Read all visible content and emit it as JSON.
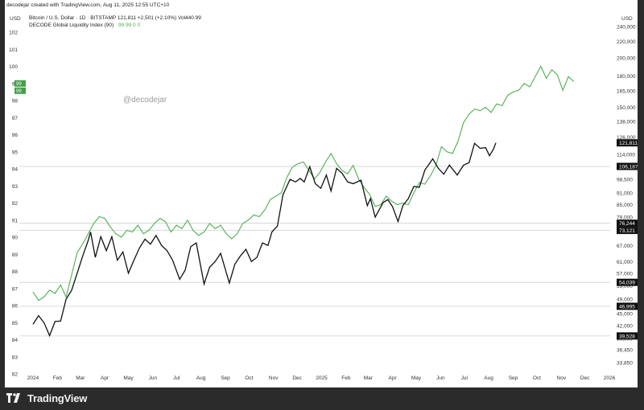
{
  "header": {
    "credit": "decodejar created with TradingView.com, Aug 11, 2025 12:55 UTC+10",
    "line1": "Bitcoin / U.S. Dollar · 1D · BITSTAMP  121,811  +2,501 (+2.10%)  Vol440.99",
    "line2_label": "DECODE Global Liquidity Index (90)",
    "line2_values": "99  99  0  0",
    "watermark": "@decodejar",
    "left_unit": "USD",
    "right_unit": "USD"
  },
  "footer": {
    "brand": "TradingView"
  },
  "colors": {
    "btc": "#111111",
    "liquidity": "#4caf50",
    "liquidity_badge": "#43a047",
    "price_badge": "#111111",
    "hline": "#cfcfcf"
  },
  "chart_data": {
    "type": "line",
    "x_labels": [
      "2024",
      "Feb",
      "Mar",
      "Apr",
      "May",
      "Jun",
      "Jul",
      "Aug",
      "Sep",
      "Oct",
      "Nov",
      "Dec",
      "2025",
      "Feb",
      "Mar",
      "Apr",
      "May",
      "Jun",
      "Jul",
      "Aug",
      "Sep",
      "Oct",
      "Nov",
      "Dec",
      "2026"
    ],
    "left_axis": {
      "label": "USD",
      "ticks": [
        102,
        101,
        100,
        99,
        98,
        97,
        96,
        95,
        94,
        93,
        92,
        91,
        90,
        89,
        88,
        87,
        86,
        85,
        84,
        83,
        82
      ],
      "current": [
        99,
        99
      ]
    },
    "right_axis": {
      "label": "USD",
      "scale": "log",
      "ticks": [
        240000,
        220000,
        200000,
        180000,
        165000,
        150000,
        138000,
        126000,
        114000,
        106000,
        98500,
        91000,
        85000,
        79000,
        73000,
        67000,
        61000,
        57000,
        53000,
        49000,
        45000,
        42000,
        39000,
        36450,
        33850
      ],
      "price_labels": [
        121811,
        106187,
        76244,
        73121,
        54039,
        46995,
        39528
      ]
    },
    "horizontal_lines": [
      106187,
      76244,
      73121,
      54039,
      46995,
      39528
    ],
    "series": [
      {
        "name": "Bitcoin / U.S. Dollar · 1D · BITSTAMP",
        "axis": "right",
        "color": "#111111",
        "points": [
          [
            "2024-01-01",
            42300
          ],
          [
            "2024-01-08",
            44500
          ],
          [
            "2024-01-15",
            42700
          ],
          [
            "2024-01-22",
            39600
          ],
          [
            "2024-01-29",
            43000
          ],
          [
            "2024-02-05",
            43100
          ],
          [
            "2024-02-12",
            49000
          ],
          [
            "2024-02-19",
            51600
          ],
          [
            "2024-02-26",
            57000
          ],
          [
            "2024-03-04",
            63000
          ],
          [
            "2024-03-11",
            69000
          ],
          [
            "2024-03-14",
            72500
          ],
          [
            "2024-03-20",
            62500
          ],
          [
            "2024-03-27",
            70500
          ],
          [
            "2024-04-03",
            65000
          ],
          [
            "2024-04-10",
            70500
          ],
          [
            "2024-04-17",
            61500
          ],
          [
            "2024-04-24",
            64500
          ],
          [
            "2024-05-01",
            57000
          ],
          [
            "2024-05-08",
            61500
          ],
          [
            "2024-05-15",
            66000
          ],
          [
            "2024-05-22",
            69500
          ],
          [
            "2024-05-29",
            67500
          ],
          [
            "2024-06-05",
            71000
          ],
          [
            "2024-06-12",
            67000
          ],
          [
            "2024-06-19",
            65000
          ],
          [
            "2024-06-26",
            61500
          ],
          [
            "2024-07-05",
            55000
          ],
          [
            "2024-07-12",
            58000
          ],
          [
            "2024-07-19",
            66500
          ],
          [
            "2024-07-26",
            68000
          ],
          [
            "2024-08-05",
            53500
          ],
          [
            "2024-08-12",
            59000
          ],
          [
            "2024-08-19",
            61000
          ],
          [
            "2024-08-26",
            64000
          ],
          [
            "2024-09-06",
            53800
          ],
          [
            "2024-09-13",
            60000
          ],
          [
            "2024-09-20",
            63000
          ],
          [
            "2024-09-27",
            65500
          ],
          [
            "2024-10-04",
            61000
          ],
          [
            "2024-10-11",
            62500
          ],
          [
            "2024-10-18",
            68000
          ],
          [
            "2024-10-25",
            67000
          ],
          [
            "2024-10-30",
            72500
          ],
          [
            "2024-11-06",
            75000
          ],
          [
            "2024-11-13",
            90000
          ],
          [
            "2024-11-22",
            98500
          ],
          [
            "2024-11-29",
            97000
          ],
          [
            "2024-12-05",
            99000
          ],
          [
            "2024-12-10",
            97000
          ],
          [
            "2024-12-17",
            106000
          ],
          [
            "2024-12-24",
            96000
          ],
          [
            "2024-12-31",
            93500
          ],
          [
            "2025-01-07",
            101000
          ],
          [
            "2025-01-13",
            92000
          ],
          [
            "2025-01-20",
            105000
          ],
          [
            "2025-01-27",
            102000
          ],
          [
            "2025-02-03",
            97000
          ],
          [
            "2025-02-10",
            96000
          ],
          [
            "2025-02-20",
            98000
          ],
          [
            "2025-02-28",
            84500
          ],
          [
            "2025-03-04",
            88000
          ],
          [
            "2025-03-10",
            79000
          ],
          [
            "2025-03-20",
            86000
          ],
          [
            "2025-03-26",
            87500
          ],
          [
            "2025-04-01",
            84000
          ],
          [
            "2025-04-08",
            77000
          ],
          [
            "2025-04-14",
            84500
          ],
          [
            "2025-04-21",
            88000
          ],
          [
            "2025-04-28",
            94500
          ],
          [
            "2025-05-05",
            94000
          ],
          [
            "2025-05-12",
            104000
          ],
          [
            "2025-05-22",
            111000
          ],
          [
            "2025-05-29",
            105000
          ],
          [
            "2025-06-05",
            101500
          ],
          [
            "2025-06-12",
            107000
          ],
          [
            "2025-06-22",
            101000
          ],
          [
            "2025-06-30",
            107000
          ],
          [
            "2025-07-07",
            108500
          ],
          [
            "2025-07-14",
            121500
          ],
          [
            "2025-07-21",
            118000
          ],
          [
            "2025-07-28",
            118500
          ],
          [
            "2025-08-02",
            113000
          ],
          [
            "2025-08-07",
            117500
          ],
          [
            "2025-08-10",
            121811
          ]
        ]
      },
      {
        "name": "DECODE Global Liquidity Index (90)",
        "axis": "left",
        "color": "#4caf50",
        "points": [
          [
            "2024-01-01",
            86.8
          ],
          [
            "2024-01-08",
            86.3
          ],
          [
            "2024-01-15",
            86.5
          ],
          [
            "2024-01-22",
            86.9
          ],
          [
            "2024-01-29",
            86.7
          ],
          [
            "2024-02-05",
            87.2
          ],
          [
            "2024-02-12",
            86.5
          ],
          [
            "2024-02-19",
            87.8
          ],
          [
            "2024-02-26",
            89.1
          ],
          [
            "2024-03-04",
            89.6
          ],
          [
            "2024-03-11",
            90.2
          ],
          [
            "2024-03-18",
            90.8
          ],
          [
            "2024-03-25",
            91.2
          ],
          [
            "2024-04-01",
            91.1
          ],
          [
            "2024-04-08",
            90.6
          ],
          [
            "2024-04-15",
            90.2
          ],
          [
            "2024-04-22",
            90.0
          ],
          [
            "2024-04-29",
            90.4
          ],
          [
            "2024-05-06",
            90.3
          ],
          [
            "2024-05-13",
            90.7
          ],
          [
            "2024-05-20",
            90.2
          ],
          [
            "2024-05-27",
            90.4
          ],
          [
            "2024-06-03",
            90.8
          ],
          [
            "2024-06-10",
            91.1
          ],
          [
            "2024-06-17",
            90.9
          ],
          [
            "2024-06-24",
            90.3
          ],
          [
            "2024-07-01",
            90.7
          ],
          [
            "2024-07-08",
            90.5
          ],
          [
            "2024-07-15",
            91.0
          ],
          [
            "2024-07-22",
            90.4
          ],
          [
            "2024-07-29",
            90.1
          ],
          [
            "2024-08-05",
            90.3
          ],
          [
            "2024-08-12",
            90.8
          ],
          [
            "2024-08-19",
            90.5
          ],
          [
            "2024-08-26",
            90.7
          ],
          [
            "2024-09-02",
            90.2
          ],
          [
            "2024-09-09",
            89.9
          ],
          [
            "2024-09-16",
            90.2
          ],
          [
            "2024-09-23",
            90.8
          ],
          [
            "2024-09-30",
            91.0
          ],
          [
            "2024-10-07",
            91.3
          ],
          [
            "2024-10-14",
            91.2
          ],
          [
            "2024-10-21",
            91.6
          ],
          [
            "2024-10-28",
            92.2
          ],
          [
            "2024-11-04",
            92.4
          ],
          [
            "2024-11-11",
            92.6
          ],
          [
            "2024-11-18",
            93.5
          ],
          [
            "2024-11-25",
            94.1
          ],
          [
            "2024-12-02",
            94.3
          ],
          [
            "2024-12-09",
            94.4
          ],
          [
            "2024-12-16",
            93.9
          ],
          [
            "2024-12-23",
            93.4
          ],
          [
            "2024-12-30",
            93.8
          ],
          [
            "2025-01-06",
            94.4
          ],
          [
            "2025-01-13",
            94.9
          ],
          [
            "2025-01-20",
            94.3
          ],
          [
            "2025-01-27",
            93.9
          ],
          [
            "2025-02-03",
            93.7
          ],
          [
            "2025-02-10",
            94.2
          ],
          [
            "2025-02-17",
            93.4
          ],
          [
            "2025-02-24",
            92.9
          ],
          [
            "2025-03-03",
            92.5
          ],
          [
            "2025-03-10",
            91.8
          ],
          [
            "2025-03-17",
            91.9
          ],
          [
            "2025-03-24",
            92.4
          ],
          [
            "2025-03-31",
            92.1
          ],
          [
            "2025-04-07",
            91.9
          ],
          [
            "2025-04-14",
            92.0
          ],
          [
            "2025-04-21",
            91.9
          ],
          [
            "2025-04-28",
            92.6
          ],
          [
            "2025-05-05",
            93.2
          ],
          [
            "2025-05-12",
            93.1
          ],
          [
            "2025-05-19",
            93.6
          ],
          [
            "2025-05-26",
            94.2
          ],
          [
            "2025-06-02",
            95.3
          ],
          [
            "2025-06-09",
            95.0
          ],
          [
            "2025-06-16",
            94.9
          ],
          [
            "2025-06-23",
            95.6
          ],
          [
            "2025-06-30",
            96.7
          ],
          [
            "2025-07-07",
            97.2
          ],
          [
            "2025-07-14",
            97.5
          ],
          [
            "2025-07-21",
            97.4
          ],
          [
            "2025-07-28",
            97.6
          ],
          [
            "2025-08-04",
            97.3
          ],
          [
            "2025-08-11",
            97.8
          ],
          [
            "2025-08-18",
            97.7
          ],
          [
            "2025-08-25",
            98.3
          ],
          [
            "2025-09-01",
            98.5
          ],
          [
            "2025-09-08",
            98.6
          ],
          [
            "2025-09-15",
            99.0
          ],
          [
            "2025-09-22",
            98.8
          ],
          [
            "2025-09-29",
            99.4
          ],
          [
            "2025-10-06",
            100.0
          ],
          [
            "2025-10-13",
            99.3
          ],
          [
            "2025-10-20",
            99.8
          ],
          [
            "2025-10-27",
            99.5
          ],
          [
            "2025-11-03",
            98.6
          ],
          [
            "2025-11-10",
            99.4
          ],
          [
            "2025-11-17",
            99.1
          ]
        ]
      }
    ]
  }
}
